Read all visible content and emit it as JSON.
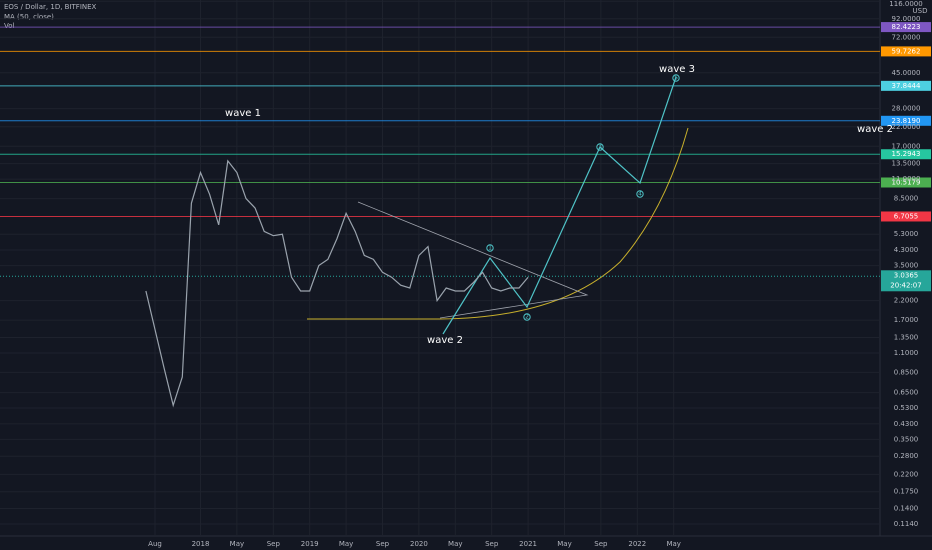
{
  "header": {
    "symbol": "EOS / Dollar, 1D, BITFINEX",
    "indicator": "MA (50, close)",
    "volume": "Vol",
    "currency": "USD"
  },
  "chart_data": {
    "type": "line",
    "log_scale": true,
    "grid": true,
    "series": [
      {
        "color": "#9aa3ad",
        "x": [
          "2017-07",
          "2017-08",
          "2017-09",
          "2017-10",
          "2017-11",
          "2017-12",
          "2018-01",
          "2018-02",
          "2018-03",
          "2018-04",
          "2018-05",
          "2018-06",
          "2018-07",
          "2018-08",
          "2018-09",
          "2018-10",
          "2018-11",
          "2018-12",
          "2019-01",
          "2019-02",
          "2019-03",
          "2019-04",
          "2019-05",
          "2019-06",
          "2019-07",
          "2019-08",
          "2019-09",
          "2019-10",
          "2019-11",
          "2019-12",
          "2020-01",
          "2020-02",
          "2020-03",
          "2020-04",
          "2020-05",
          "2020-06",
          "2020-07",
          "2020-08",
          "2020-09",
          "2020-10",
          "2020-11",
          "2020-12",
          "2021-01"
        ],
        "values": [
          2.5,
          1.5,
          0.9,
          0.55,
          0.8,
          8,
          12,
          9,
          6,
          14,
          12,
          8.5,
          7.5,
          5.5,
          5.2,
          5.3,
          3,
          2.5,
          2.5,
          3.5,
          3.8,
          5,
          7,
          5.5,
          4,
          3.8,
          3.2,
          3,
          2.7,
          2.6,
          4,
          4.5,
          2.2,
          2.6,
          2.5,
          2.5,
          2.8,
          3.2,
          2.6,
          2.5,
          2.6,
          2.6,
          3.0
        ]
      }
    ],
    "xticks": [
      {
        "value": "2017-08",
        "label": "Aug"
      },
      {
        "value": "2018-01",
        "label": "2018"
      },
      {
        "value": "2018-05",
        "label": "May"
      },
      {
        "value": "2018-09",
        "label": "Sep"
      },
      {
        "value": "2019-01",
        "label": "2019"
      },
      {
        "value": "2019-05",
        "label": "May"
      },
      {
        "value": "2019-09",
        "label": "Sep"
      },
      {
        "value": "2020-01",
        "label": "2020"
      },
      {
        "value": "2020-05",
        "label": "May"
      },
      {
        "value": "2020-09",
        "label": "Sep"
      },
      {
        "value": "2021-01",
        "label": "2021"
      },
      {
        "value": "2021-05",
        "label": "May"
      },
      {
        "value": "2021-09",
        "label": "Sep"
      },
      {
        "value": "2022-01",
        "label": "2022"
      },
      {
        "value": "2022-05",
        "label": "May"
      }
    ],
    "ylim": [
      0.0923,
      118
    ],
    "yticks": [
      {
        "value": 116,
        "label": "116.0000"
      },
      {
        "value": 92,
        "label": "92.0000"
      },
      {
        "value": 72,
        "label": "72.0000"
      },
      {
        "value": 45,
        "label": "45.0000"
      },
      {
        "value": 28,
        "label": "28.0000"
      },
      {
        "value": 22,
        "label": "22.0000"
      },
      {
        "value": 17,
        "label": "17.0000"
      },
      {
        "value": 13.5,
        "label": "13.5000"
      },
      {
        "value": 11,
        "label": "11.0000"
      },
      {
        "value": 8.5,
        "label": "8.5000"
      },
      {
        "value": 5.3,
        "label": "5.3000"
      },
      {
        "value": 4.3,
        "label": "4.3000"
      },
      {
        "value": 3.5,
        "label": "3.5000"
      },
      {
        "value": 2.2,
        "label": "2.2000"
      },
      {
        "value": 1.7,
        "label": "1.7000"
      },
      {
        "value": 1.35,
        "label": "1.3500"
      },
      {
        "value": 1.1,
        "label": "1.1000"
      },
      {
        "value": 0.85,
        "label": "0.8500"
      },
      {
        "value": 0.65,
        "label": "0.6500"
      },
      {
        "value": 0.53,
        "label": "0.5300"
      },
      {
        "value": 0.43,
        "label": "0.4300"
      },
      {
        "value": 0.35,
        "label": "0.3500"
      },
      {
        "value": 0.28,
        "label": "0.2800"
      },
      {
        "value": 0.22,
        "label": "0.2200"
      },
      {
        "value": 0.175,
        "label": "0.1750"
      },
      {
        "value": 0.14,
        "label": "0.1400"
      },
      {
        "value": 0.114,
        "label": "0.1140"
      }
    ],
    "levels": [
      {
        "value": 82.4223,
        "label": "82.4223",
        "color": "#7e57c2"
      },
      {
        "value": 59.7262,
        "label": "59.7262",
        "color": "#ff9800"
      },
      {
        "value": 37.8444,
        "label": "37.8444",
        "color": "#4dd0e1"
      },
      {
        "value": 23.819,
        "label": "23.8190",
        "color": "#2196f3"
      },
      {
        "value": 15.2943,
        "label": "15.2943",
        "color": "#26c6a0"
      },
      {
        "value": 10.5179,
        "label": "10.5179",
        "color": "#4caf50"
      },
      {
        "value": 6.7055,
        "label": "6.7055",
        "color": "#f23645"
      }
    ],
    "last_price": {
      "value": 3.0365,
      "label": "3.0365",
      "countdown": "20:42:07",
      "color": "#26a69a"
    },
    "annotations": [
      "wave 1",
      "wave 2",
      "wave 3",
      "wave 2",
      "1",
      "2",
      "3",
      "4",
      "5"
    ]
  }
}
